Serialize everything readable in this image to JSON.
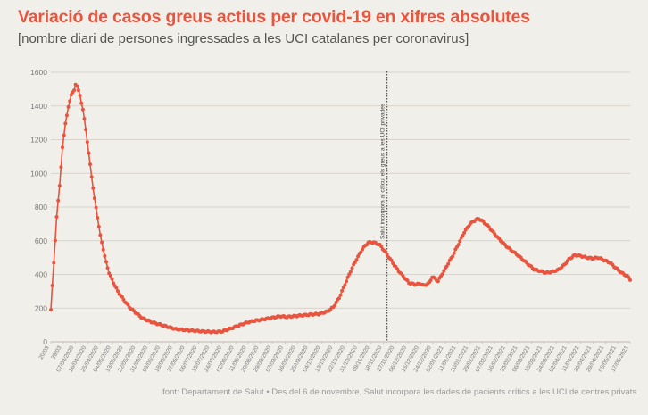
{
  "header": {
    "title": "Variació de casos greus actius per covid-19 en xifres absolutes",
    "subtitle": "[nombre diari de persones ingressades a les UCI catalanes per coronavirus]"
  },
  "footer": {
    "source": "font: Departament de Salut • Des del 6 de novembre, Salut incorpora les dades de pacients crítics a les UCI de centres privats"
  },
  "colors": {
    "line": "#e8543e",
    "title": "#e8543e",
    "grid": "#cfcac1",
    "background": "#f1efe9"
  },
  "chart_data": {
    "type": "line",
    "title": "Variació de casos greus actius per covid-19 en xifres absolutes",
    "xlabel": "",
    "ylabel": "",
    "ylim": [
      0,
      1600
    ],
    "yticks": [
      0,
      200,
      400,
      600,
      800,
      1000,
      1200,
      1400,
      1600
    ],
    "grid": true,
    "x_range": [
      "20/03/2020",
      "17/03/2021"
    ],
    "xtick_labels": [
      "20/03",
      "29/03",
      "07/04/2020",
      "16/04/2020",
      "25/04/2020",
      "04/05/2020",
      "13/05/2020",
      "22/05/2020",
      "31/05/2020",
      "09/06/2020",
      "18/06/2020",
      "27/06/2020",
      "06/07/2020",
      "15/07/2020",
      "24/07/2020",
      "02/08/2020",
      "11/08/2020",
      "20/08/2020",
      "29/08/2020",
      "07/09/2020",
      "16/09/2020",
      "25/09/2020",
      "04/10/2020",
      "13/10/2020",
      "22/10/2020",
      "31/10/2020",
      "09/11/2020",
      "18/11/2020",
      "27/11/2020",
      "06/12/2020",
      "15/12/2020",
      "24/12/2020",
      "02/01/2021",
      "11/01/2021",
      "20/01/2021",
      "29/01/2021",
      "07/02/2021",
      "16/02/2021",
      "25/02/2021",
      "06/03/2021",
      "15/03/2021",
      "24/03/2021",
      "02/04/2021",
      "11/04/2021",
      "20/04/2021",
      "29/04/2021",
      "08/05/2021",
      "17/05/2021"
    ],
    "series": [
      {
        "name": "Persones ingressades a les UCI",
        "keyframes": [
          [
            0,
            190
          ],
          [
            2,
            470
          ],
          [
            4,
            740
          ],
          [
            6,
            930
          ],
          [
            8,
            1150
          ],
          [
            10,
            1300
          ],
          [
            12,
            1390
          ],
          [
            14,
            1470
          ],
          [
            16,
            1490
          ],
          [
            17,
            1530
          ],
          [
            18,
            1520
          ],
          [
            19,
            1490
          ],
          [
            20,
            1460
          ],
          [
            22,
            1380
          ],
          [
            24,
            1260
          ],
          [
            26,
            1120
          ],
          [
            28,
            980
          ],
          [
            30,
            850
          ],
          [
            32,
            740
          ],
          [
            34,
            630
          ],
          [
            36,
            550
          ],
          [
            38,
            470
          ],
          [
            40,
            410
          ],
          [
            43,
            350
          ],
          [
            46,
            300
          ],
          [
            50,
            250
          ],
          [
            54,
            205
          ],
          [
            58,
            175
          ],
          [
            63,
            140
          ],
          [
            70,
            115
          ],
          [
            78,
            95
          ],
          [
            86,
            75
          ],
          [
            95,
            68
          ],
          [
            104,
            62
          ],
          [
            112,
            58
          ],
          [
            118,
            62
          ],
          [
            124,
            80
          ],
          [
            130,
            100
          ],
          [
            136,
            118
          ],
          [
            142,
            128
          ],
          [
            150,
            140
          ],
          [
            158,
            152
          ],
          [
            162,
            148
          ],
          [
            168,
            153
          ],
          [
            176,
            160
          ],
          [
            184,
            165
          ],
          [
            190,
            180
          ],
          [
            194,
            205
          ],
          [
            198,
            260
          ],
          [
            202,
            340
          ],
          [
            206,
            420
          ],
          [
            210,
            490
          ],
          [
            214,
            550
          ],
          [
            218,
            590
          ],
          [
            222,
            590
          ],
          [
            226,
            575
          ],
          [
            230,
            530
          ],
          [
            234,
            480
          ],
          [
            238,
            430
          ],
          [
            242,
            390
          ],
          [
            246,
            350
          ],
          [
            250,
            340
          ],
          [
            254,
            345
          ],
          [
            256,
            335
          ],
          [
            258,
            340
          ],
          [
            260,
            350
          ],
          [
            262,
            385
          ],
          [
            264,
            375
          ],
          [
            266,
            360
          ],
          [
            268,
            390
          ],
          [
            272,
            450
          ],
          [
            276,
            510
          ],
          [
            280,
            580
          ],
          [
            284,
            650
          ],
          [
            288,
            700
          ],
          [
            292,
            725
          ],
          [
            294,
            730
          ],
          [
            296,
            720
          ],
          [
            300,
            690
          ],
          [
            304,
            650
          ],
          [
            308,
            610
          ],
          [
            312,
            575
          ],
          [
            316,
            545
          ],
          [
            320,
            520
          ],
          [
            324,
            490
          ],
          [
            328,
            460
          ],
          [
            332,
            430
          ],
          [
            336,
            420
          ],
          [
            340,
            410
          ],
          [
            344,
            415
          ],
          [
            348,
            425
          ],
          [
            352,
            450
          ],
          [
            356,
            490
          ],
          [
            360,
            515
          ],
          [
            364,
            510
          ],
          [
            368,
            500
          ],
          [
            372,
            495
          ],
          [
            376,
            500
          ],
          [
            380,
            485
          ],
          [
            384,
            470
          ],
          [
            388,
            440
          ],
          [
            392,
            410
          ],
          [
            396,
            390
          ],
          [
            398,
            370
          ]
        ]
      }
    ],
    "annotations": [
      {
        "date": "06/11/2020",
        "text": "Salut incorpora al càlcul els greus a les UCI privades"
      }
    ]
  }
}
